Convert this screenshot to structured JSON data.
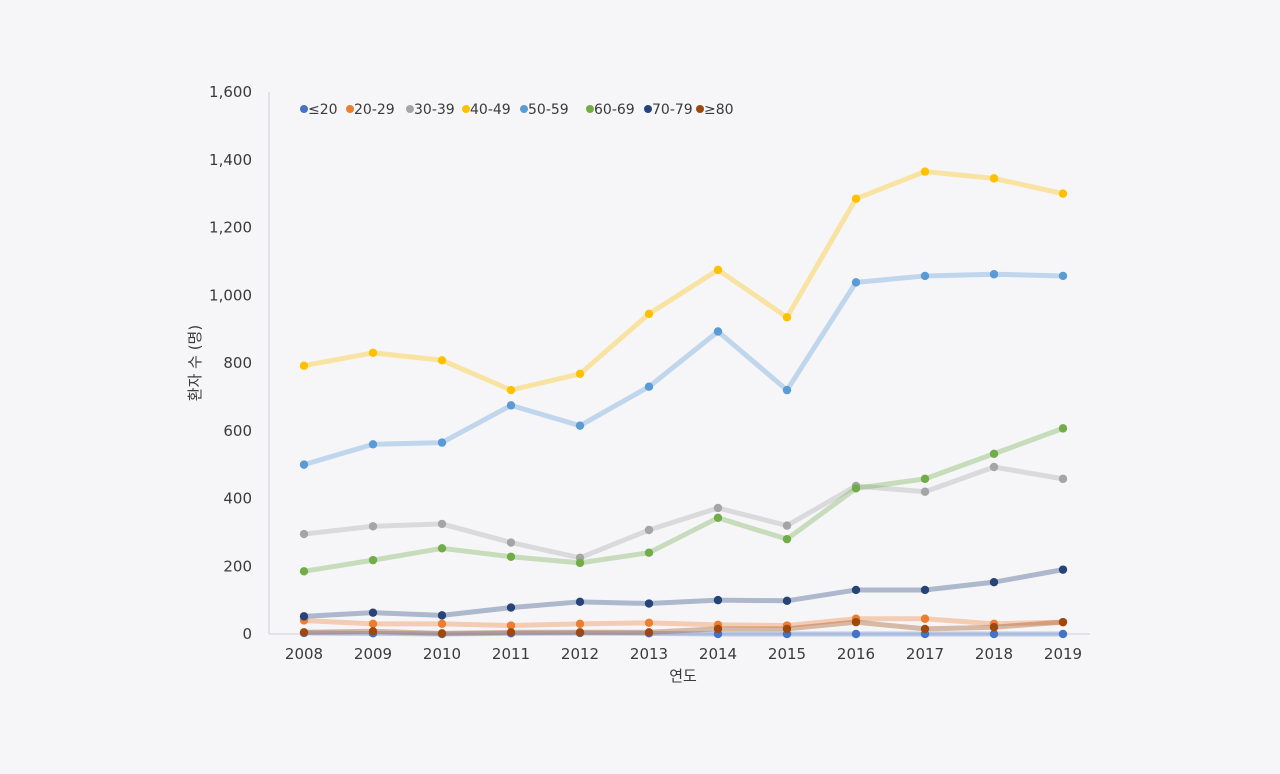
{
  "chart_data": {
    "type": "line",
    "title": "",
    "xlabel": "연도",
    "ylabel": "환자 수 (명)",
    "ylim": [
      0,
      1600
    ],
    "yticks": [
      0,
      200,
      400,
      600,
      800,
      1000,
      1200,
      1400,
      1600
    ],
    "ytick_labels": [
      "0",
      "200",
      "400",
      "600",
      "800",
      "1,000",
      "1,200",
      "1,400",
      "1,600"
    ],
    "categories": [
      "2008",
      "2009",
      "2010",
      "2011",
      "2012",
      "2013",
      "2014",
      "2015",
      "2016",
      "2017",
      "2018",
      "2019"
    ],
    "grid": false,
    "legend_position": "top-left",
    "series": [
      {
        "name": "≤20",
        "color": "#4472c4",
        "values": [
          3,
          2,
          0,
          2,
          3,
          2,
          0,
          0,
          0,
          0,
          0,
          0
        ]
      },
      {
        "name": "20-29",
        "color": "#ed7d31",
        "values": [
          40,
          30,
          30,
          25,
          30,
          33,
          27,
          25,
          45,
          45,
          30,
          35
        ]
      },
      {
        "name": "30-39",
        "color": "#a5a5a5",
        "values": [
          295,
          318,
          325,
          270,
          225,
          307,
          372,
          320,
          437,
          420,
          493,
          458
        ]
      },
      {
        "name": "40-49",
        "color": "#ffc000",
        "values": [
          792,
          830,
          808,
          720,
          768,
          945,
          1075,
          935,
          1285,
          1365,
          1345,
          1300
        ]
      },
      {
        "name": "50-59",
        "color": "#5b9bd5",
        "values": [
          500,
          560,
          565,
          675,
          615,
          730,
          893,
          720,
          1038,
          1057,
          1062,
          1057
        ]
      },
      {
        "name": "60-69",
        "color": "#70ad47",
        "values": [
          185,
          218,
          253,
          228,
          210,
          240,
          343,
          280,
          430,
          458,
          532,
          607
        ]
      },
      {
        "name": "70-79",
        "color": "#264478",
        "values": [
          52,
          63,
          55,
          78,
          95,
          90,
          100,
          98,
          130,
          130,
          153,
          190
        ]
      },
      {
        "name": "≥80",
        "color": "#9e480e",
        "values": [
          5,
          8,
          2,
          5,
          5,
          5,
          15,
          15,
          35,
          15,
          20,
          35
        ]
      }
    ]
  }
}
